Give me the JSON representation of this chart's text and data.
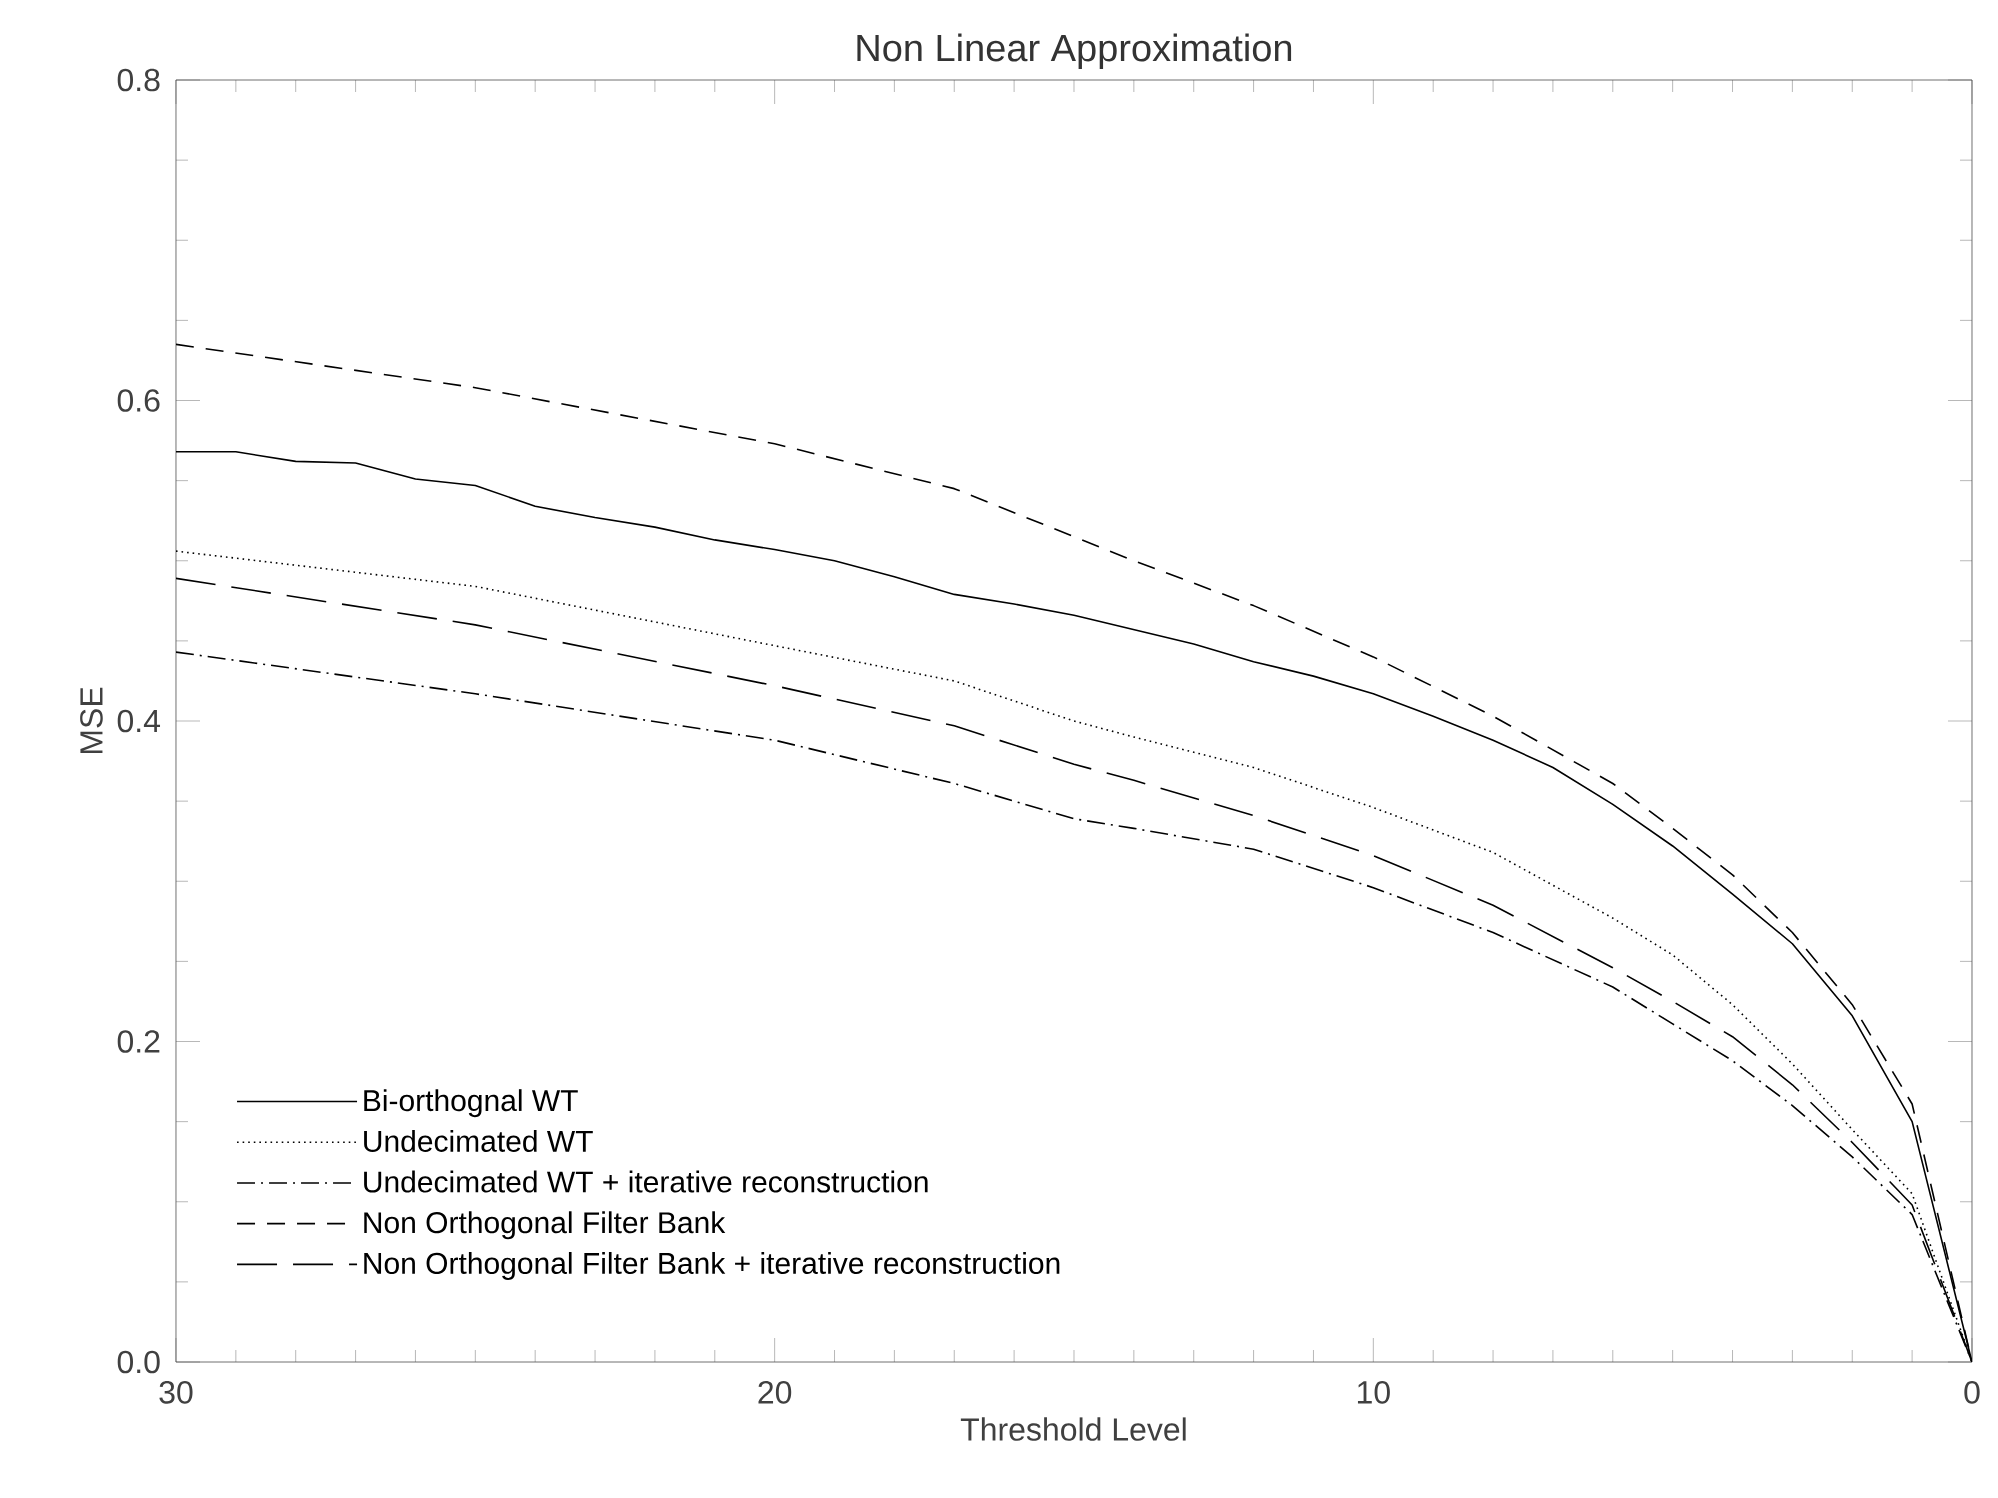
{
  "chart_data": {
    "type": "line",
    "title": "Non Linear Approximation",
    "xlabel": "Threshold Level",
    "ylabel": "MSE",
    "xlim": [
      30,
      0
    ],
    "ylim": [
      0,
      0.8
    ],
    "xticks": [
      30,
      20,
      10,
      0
    ],
    "yticks": [
      {
        "value": 0,
        "label": "0.0"
      },
      0.2,
      0.4,
      0.6,
      0.8
    ],
    "grid": false,
    "legend": "bottom left",
    "marker": "none",
    "series": [
      {
        "name": "Bi-orthognal WT",
        "color": "#000000",
        "line_style": "solid",
        "x": [
          30,
          29,
          28,
          27,
          26,
          25,
          24,
          23,
          22,
          21,
          20,
          19,
          18,
          17,
          16,
          15,
          14,
          13,
          12,
          11,
          10,
          9,
          8,
          7,
          6,
          5,
          4,
          3,
          2,
          1,
          0
        ],
        "values": [
          0.568,
          0.568,
          0.562,
          0.561,
          0.551,
          0.547,
          0.534,
          0.527,
          0.521,
          0.513,
          0.507,
          0.5,
          0.49,
          0.479,
          0.473,
          0.466,
          0.457,
          0.448,
          0.437,
          0.428,
          0.417,
          0.403,
          0.388,
          0.371,
          0.348,
          0.322,
          0.292,
          0.261,
          0.216,
          0.15,
          0
        ]
      },
      {
        "name": "Undecimated WT",
        "color": "#000000",
        "line_style": "dotted",
        "x": [
          30,
          25,
          20,
          17,
          15,
          14,
          12,
          10,
          8,
          6,
          5,
          4,
          3,
          2,
          1,
          0
        ],
        "values": [
          0.506,
          0.484,
          0.447,
          0.425,
          0.4,
          0.39,
          0.371,
          0.346,
          0.318,
          0.277,
          0.254,
          0.223,
          0.186,
          0.145,
          0.105,
          0
        ]
      },
      {
        "name": "Undecimated WT + iterative reconstruction",
        "color": "#000000",
        "line_style": "dashdot",
        "x": [
          30,
          25,
          20,
          17,
          15,
          14,
          12,
          10,
          8,
          6,
          5,
          4,
          3,
          2,
          1,
          0
        ],
        "values": [
          0.443,
          0.417,
          0.388,
          0.361,
          0.339,
          0.333,
          0.32,
          0.296,
          0.268,
          0.234,
          0.211,
          0.188,
          0.16,
          0.128,
          0.092,
          0
        ]
      },
      {
        "name": "Non Orthogonal Filter Bank",
        "color": "#000000",
        "line_style": "dashed",
        "x": [
          30,
          25,
          20,
          17,
          15,
          14,
          12,
          10,
          8,
          6,
          5,
          4,
          3,
          2,
          1,
          0
        ],
        "values": [
          0.635,
          0.608,
          0.573,
          0.545,
          0.515,
          0.5,
          0.472,
          0.44,
          0.403,
          0.361,
          0.333,
          0.304,
          0.268,
          0.223,
          0.161,
          0
        ]
      },
      {
        "name": "Non Orthogonal Filter Bank + iterative reconstruction",
        "color": "#000000",
        "line_style": "longdashed",
        "x": [
          30,
          25,
          20,
          17,
          15,
          14,
          12,
          10,
          8,
          6,
          5,
          4,
          3,
          2,
          1,
          0
        ],
        "values": [
          0.489,
          0.46,
          0.422,
          0.397,
          0.373,
          0.363,
          0.341,
          0.316,
          0.285,
          0.246,
          0.225,
          0.203,
          0.173,
          0.137,
          0.098,
          0
        ]
      }
    ]
  }
}
